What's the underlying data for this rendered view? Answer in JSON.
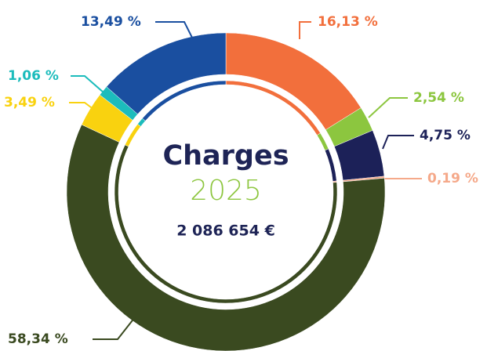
{
  "chart_data": {
    "type": "donut",
    "title": "Charges",
    "subtitle": "2025",
    "annotation": "2 086 654 €",
    "values": [
      16.13,
      2.54,
      4.75,
      0.19,
      58.34,
      3.49,
      1.06,
      13.49
    ],
    "value_labels": [
      "16,13 %",
      "2,54 %",
      "4,75 %",
      "0,19 %",
      "58,34 %",
      "3,49 %",
      "1,06 %",
      "13,49 %"
    ],
    "colors": [
      "#f26f3c",
      "#8cc63f",
      "#1c2158",
      "#f5a98a",
      "#3a4a20",
      "#f9d20f",
      "#1cbcbc",
      "#1a4fa0"
    ]
  }
}
